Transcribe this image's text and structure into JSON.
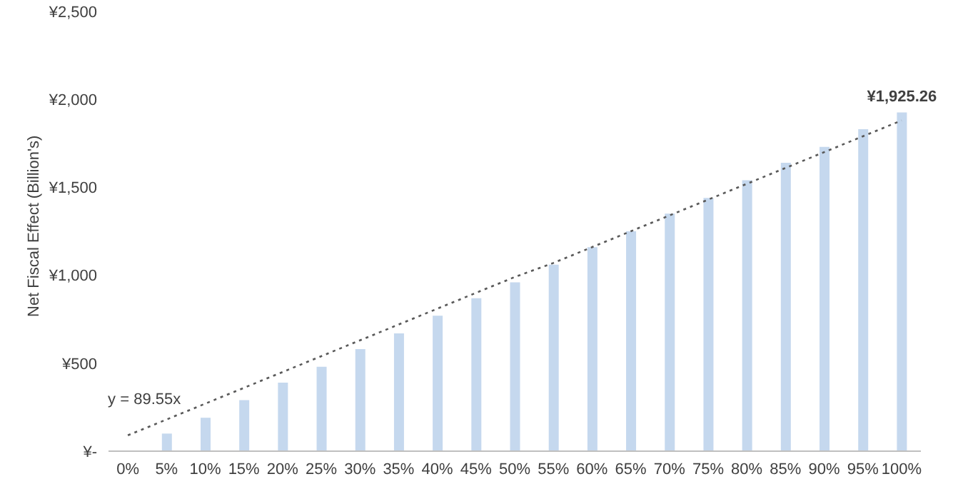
{
  "chart_data": {
    "type": "bar",
    "ylabel": "Net Fiscal Effect (Billion's)",
    "categories": [
      "0%",
      "5%",
      "10%",
      "15%",
      "20%",
      "25%",
      "30%",
      "35%",
      "40%",
      "45%",
      "50%",
      "55%",
      "60%",
      "65%",
      "70%",
      "75%",
      "80%",
      "85%",
      "90%",
      "95%",
      "100%"
    ],
    "series": [
      {
        "color": "#c5d8ee",
        "values": [
          0,
          100,
          190,
          290,
          390,
          480,
          580,
          670,
          770,
          870,
          960,
          1060,
          1160,
          1250,
          1350,
          1440,
          1540,
          1640,
          1730,
          1830,
          1925.26
        ],
        "value_labels": [
          null,
          null,
          null,
          null,
          null,
          null,
          null,
          null,
          null,
          null,
          null,
          null,
          null,
          null,
          null,
          null,
          null,
          null,
          null,
          null,
          "¥1,925.26"
        ]
      },
      {
        "type": "line",
        "color": "#595959",
        "line_style": "dotted",
        "marker": "none",
        "values": [
          90,
          180,
          270,
          360,
          450,
          540,
          630,
          720,
          810,
          900,
          990,
          1070,
          1160,
          1250,
          1340,
          1430,
          1520,
          1610,
          1700,
          1790,
          1880
        ]
      }
    ],
    "annotations": [
      "y = 89.55x"
    ],
    "ylim": [
      0,
      2500
    ],
    "yticks": [
      {
        "value": 0,
        "label": "¥-"
      },
      {
        "value": 500,
        "label": "¥500"
      },
      {
        "value": 1000,
        "label": "¥1,000"
      },
      {
        "value": 1500,
        "label": "¥1,500"
      },
      {
        "value": 2000,
        "label": "¥2,000"
      },
      {
        "value": 2500,
        "label": "¥2,500"
      }
    ],
    "grid": false,
    "legend": false
  }
}
